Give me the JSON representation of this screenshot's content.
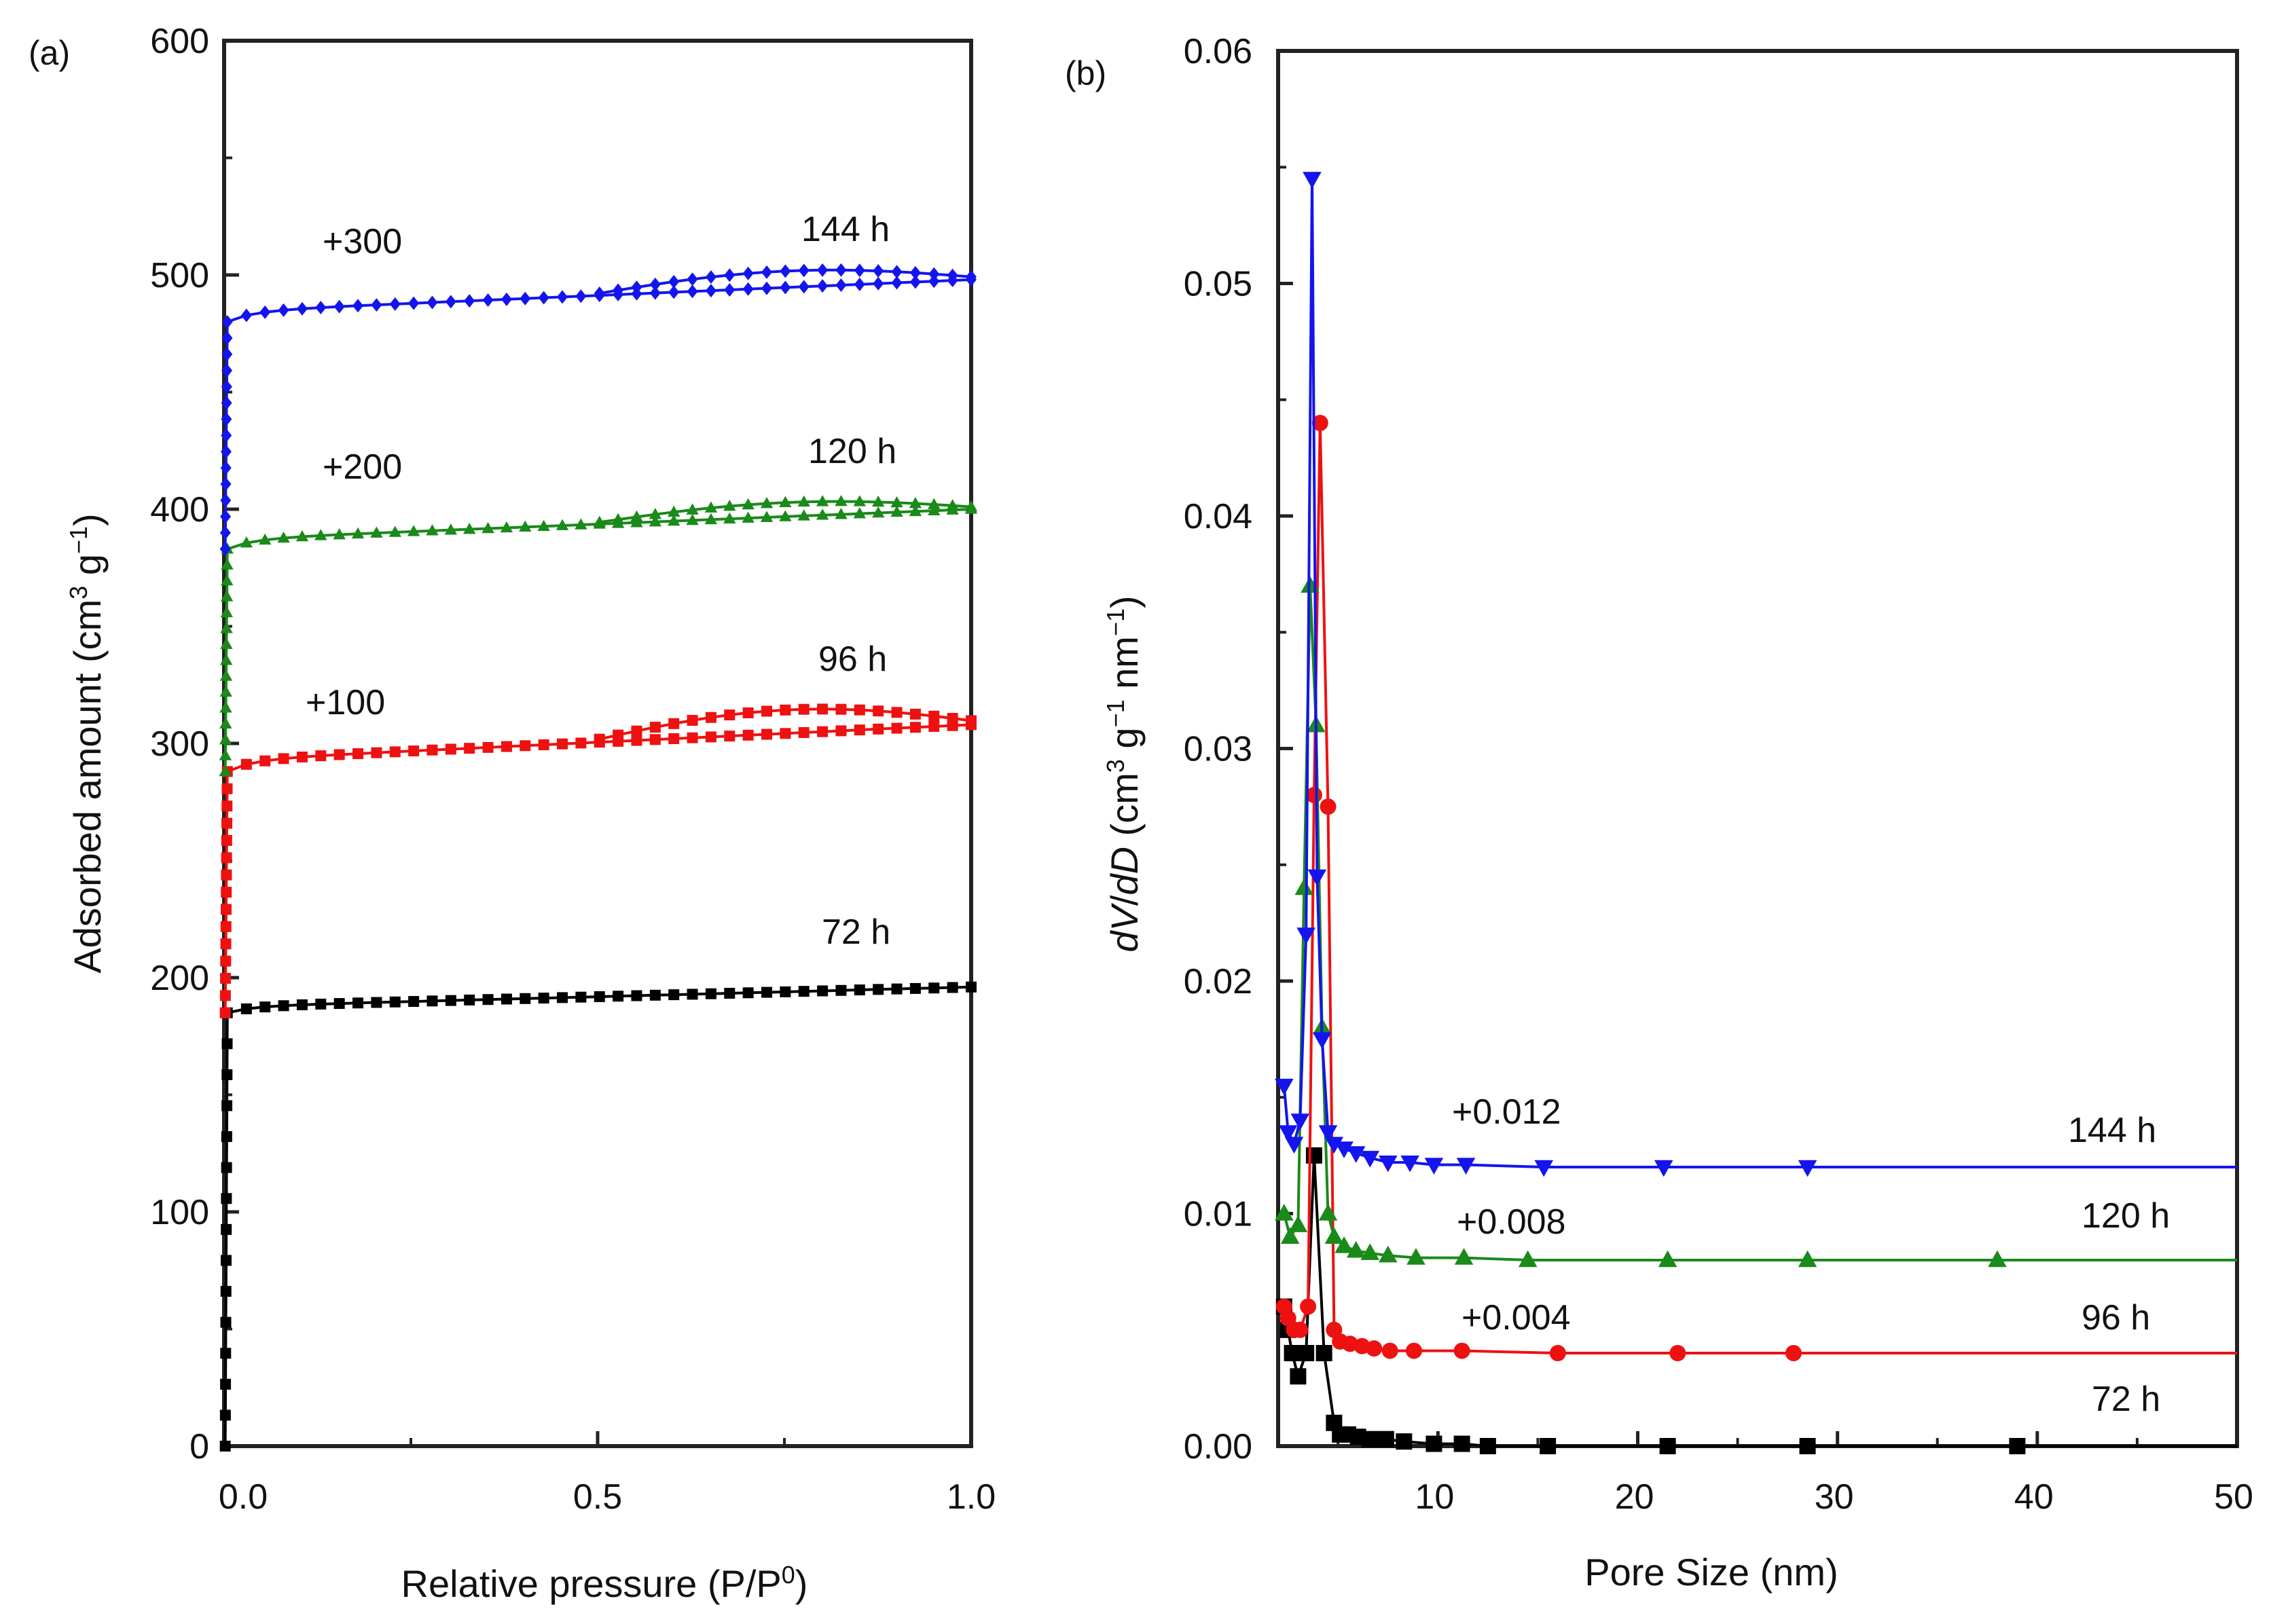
{
  "chart_data": [
    {
      "panel": "(a)",
      "type": "line",
      "xlabel": "Relative pressure (P/P",
      "xlabel_sup": "0",
      "xlabel_end": ")",
      "ylabel": "Adsorbed amount (cm",
      "ylabel_mid1": "3",
      "ylabel_mid2": " g",
      "ylabel_mid3": "−1",
      "ylabel_end": ")",
      "xlim": [
        0,
        1.0
      ],
      "ylim": [
        0,
        600
      ],
      "xticks": [
        {
          "v": 0.0,
          "label": "0.0"
        },
        {
          "v": 0.5,
          "label": "0.5"
        },
        {
          "v": 1.0,
          "label": "1.0"
        }
      ],
      "yticks": [
        {
          "v": 0,
          "label": "0"
        },
        {
          "v": 100,
          "label": "100"
        },
        {
          "v": 200,
          "label": "200"
        },
        {
          "v": 300,
          "label": "300"
        },
        {
          "v": 400,
          "label": "400"
        },
        {
          "v": 500,
          "label": "500"
        },
        {
          "v": 600,
          "label": "600"
        }
      ],
      "series": [
        {
          "name": "72 h",
          "label": "72 h",
          "offset_label": "",
          "color": "#000000",
          "marker": "square",
          "base": 185,
          "end": 196,
          "hysteresis": 0
        },
        {
          "name": "96 h",
          "label": "96 h",
          "offset_label": "+100",
          "color": "#ee1111",
          "marker": "square",
          "base": 288,
          "end": 308,
          "hysteresis": 10
        },
        {
          "name": "120 h",
          "label": "120 h",
          "offset_label": "+200",
          "color": "#1a8a1a",
          "marker": "triangle",
          "base": 383,
          "end": 400,
          "hysteresis": 6
        },
        {
          "name": "144 h",
          "label": "144 h",
          "offset_label": "+300",
          "color": "#1414ee",
          "marker": "diamond",
          "base": 480,
          "end": 498,
          "hysteresis": 7
        }
      ]
    },
    {
      "panel": "(b)",
      "type": "line",
      "xlabel": "Pore Size (nm)",
      "ylabel_italic1": "dV",
      "ylabel_slash": "/",
      "ylabel_italic2": "dD",
      "ylabel_units": " (cm",
      "ylabel_u1": "3",
      "ylabel_u2": " g",
      "ylabel_u3": "−1",
      "ylabel_u4": " nm",
      "ylabel_u5": "−1",
      "ylabel_end": ")",
      "xlim": [
        2,
        50
      ],
      "ylim": [
        0,
        0.06
      ],
      "xticks": [
        {
          "v": 10,
          "label": "10"
        },
        {
          "v": 20,
          "label": "20"
        },
        {
          "v": 30,
          "label": "30"
        },
        {
          "v": 40,
          "label": "40"
        },
        {
          "v": 50,
          "label": "50"
        }
      ],
      "yticks": [
        {
          "v": 0.0,
          "label": "0.00"
        },
        {
          "v": 0.01,
          "label": "0.01"
        },
        {
          "v": 0.02,
          "label": "0.02"
        },
        {
          "v": 0.03,
          "label": "0.03"
        },
        {
          "v": 0.04,
          "label": "0.04"
        },
        {
          "v": 0.05,
          "label": "0.05"
        },
        {
          "v": 0.06,
          "label": "0.06"
        }
      ],
      "series": [
        {
          "name": "72 h",
          "label": "72 h",
          "offset_label": "",
          "color": "#000000",
          "marker": "square",
          "offset": 0.0,
          "x": [
            2.3,
            2.5,
            2.7,
            3.0,
            3.4,
            3.8,
            4.3,
            4.8,
            5.1,
            5.5,
            6.0,
            6.6,
            7.4,
            8.3,
            9.8,
            11.2,
            12.5,
            15.5,
            21.5,
            28.5,
            39.0,
            50
          ],
          "y": [
            0.006,
            0.005,
            0.004,
            0.003,
            0.004,
            0.0125,
            0.004,
            0.001,
            0.0005,
            0.0005,
            0.0004,
            0.0003,
            0.0003,
            0.0002,
            0.0001,
            0.0001,
            0.0,
            0.0,
            0.0,
            0.0,
            0.0,
            0.0
          ]
        },
        {
          "name": "96 h",
          "label": "96 h",
          "offset_label": "+0.004",
          "color": "#ee1111",
          "marker": "circle",
          "offset": 0.004,
          "x": [
            2.3,
            2.5,
            2.8,
            3.1,
            3.5,
            3.8,
            4.1,
            4.5,
            4.8,
            5.1,
            5.6,
            6.2,
            6.8,
            7.6,
            8.8,
            11.2,
            16.0,
            22.0,
            27.8,
            50
          ],
          "y": [
            0.002,
            0.0015,
            0.001,
            0.001,
            0.002,
            0.024,
            0.04,
            0.0235,
            0.001,
            0.0005,
            0.0004,
            0.0003,
            0.0002,
            0.0001,
            0.0001,
            0.0001,
            0.0,
            0.0,
            0.0,
            0.0
          ]
        },
        {
          "name": "120 h",
          "label": "120 h",
          "offset_label": "+0.008",
          "color": "#1a8a1a",
          "marker": "triangle",
          "offset": 0.008,
          "x": [
            2.3,
            2.6,
            3.0,
            3.3,
            3.6,
            3.9,
            4.2,
            4.5,
            4.8,
            5.3,
            5.9,
            6.6,
            7.5,
            8.9,
            11.3,
            14.5,
            21.5,
            28.5,
            38.0,
            50
          ],
          "y": [
            0.002,
            0.001,
            0.0015,
            0.016,
            0.029,
            0.023,
            0.01,
            0.002,
            0.001,
            0.0006,
            0.0004,
            0.0003,
            0.0002,
            0.0001,
            0.0001,
            0.0,
            0.0,
            0.0,
            0.0,
            0.0
          ]
        },
        {
          "name": "144 h",
          "label": "144 h",
          "offset_label": "+0.012",
          "color": "#1414ee",
          "marker": "triangle-down",
          "offset": 0.012,
          "x": [
            2.3,
            2.5,
            2.8,
            3.1,
            3.4,
            3.7,
            3.95,
            4.2,
            4.5,
            4.8,
            5.3,
            5.9,
            6.6,
            7.5,
            8.6,
            9.8,
            11.4,
            15.3,
            21.3,
            28.5,
            50
          ],
          "y": [
            0.0035,
            0.0015,
            0.001,
            0.002,
            0.01,
            0.0425,
            0.0125,
            0.0055,
            0.0015,
            0.001,
            0.0008,
            0.0006,
            0.0004,
            0.0002,
            0.0002,
            0.0001,
            0.0001,
            0.0,
            0.0,
            0.0,
            0.0
          ]
        }
      ]
    }
  ]
}
